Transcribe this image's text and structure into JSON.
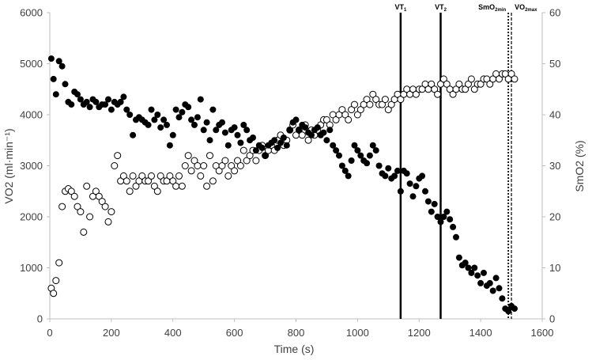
{
  "chart_data": {
    "type": "scatter",
    "xlabel": "Time (s)",
    "ylabel_left": "VO2 (ml·min⁻¹)",
    "ylabel_right": "SmO2 (%)",
    "xlim": [
      0,
      1600
    ],
    "ylim_left": [
      0,
      6000
    ],
    "ylim_right": [
      0,
      60
    ],
    "x_ticks": [
      "0",
      "200",
      "400",
      "600",
      "800",
      "1000",
      "1200",
      "1400",
      "1600"
    ],
    "y_left_ticks": [
      "0",
      "1000",
      "2000",
      "3000",
      "4000",
      "5000",
      "6000"
    ],
    "y_right_ticks": [
      "0",
      "10",
      "20",
      "30",
      "40",
      "50",
      "60"
    ],
    "grid": false,
    "colors": {
      "axis": "#bfbfbf",
      "text": "#404040",
      "filled": "#000000",
      "open_fill": "#ffffff",
      "open_stroke": "#000000"
    },
    "markers": [
      {
        "x": 1140,
        "style": "solid",
        "label": "VT",
        "sub": "1"
      },
      {
        "x": 1270,
        "style": "solid",
        "label": "VT",
        "sub": "2"
      },
      {
        "x": 1490,
        "style": "dotted",
        "label": "SmO",
        "sub": "2min"
      },
      {
        "x": 1500,
        "style": "dashed",
        "label": "VO",
        "sub": "2max"
      }
    ],
    "series": [
      {
        "axis": "left",
        "marker": "filled-circle",
        "x": [
          5,
          12,
          20,
          30,
          40,
          50,
          60,
          70,
          80,
          90,
          100,
          110,
          120,
          130,
          140,
          150,
          160,
          170,
          180,
          190,
          200,
          210,
          220,
          230,
          240,
          250,
          260,
          270,
          280,
          290,
          300,
          310,
          320,
          330,
          340,
          350,
          360,
          370,
          380,
          390,
          400,
          410,
          420,
          430,
          440,
          450,
          460,
          470,
          480,
          490,
          500,
          510,
          520,
          530,
          540,
          550,
          560,
          570,
          580,
          590,
          600,
          610,
          620,
          630,
          640,
          650,
          660,
          670,
          680,
          690,
          700,
          710,
          720,
          730,
          740,
          750,
          760,
          770,
          780,
          790,
          800,
          810,
          820,
          830,
          840,
          850,
          860,
          870,
          880,
          890,
          900,
          910,
          920,
          930,
          940,
          950,
          960,
          970,
          980,
          990,
          1000,
          1010,
          1020,
          1030,
          1040,
          1050,
          1060,
          1070,
          1080,
          1090,
          1100,
          1110,
          1120,
          1130,
          1140,
          1150,
          1160,
          1170,
          1180,
          1190,
          1200,
          1210,
          1220,
          1230,
          1240,
          1250,
          1260,
          1270,
          1280,
          1290,
          1300,
          1310,
          1320,
          1330,
          1340,
          1350,
          1360,
          1370,
          1380,
          1390,
          1400,
          1410,
          1420,
          1430,
          1440,
          1450,
          1460,
          1470,
          1480,
          1490,
          1500,
          1510
        ],
        "y": [
          5100,
          4700,
          4400,
          5050,
          4950,
          4600,
          4250,
          4200,
          4450,
          4400,
          4300,
          4200,
          4250,
          4150,
          4300,
          4250,
          4150,
          4200,
          4200,
          4300,
          4100,
          4250,
          4200,
          4250,
          4350,
          4100,
          4000,
          3600,
          3900,
          3950,
          3900,
          3850,
          3800,
          4100,
          3900,
          4000,
          3750,
          3900,
          3800,
          3400,
          3600,
          4100,
          3950,
          4050,
          4200,
          4150,
          3900,
          3800,
          3950,
          4300,
          3700,
          3850,
          3500,
          4100,
          3700,
          3800,
          3850,
          3650,
          3400,
          3700,
          3750,
          3600,
          3450,
          3800,
          3700,
          3500,
          3550,
          3300,
          3400,
          3350,
          3200,
          3400,
          3450,
          3500,
          3350,
          3450,
          3550,
          3400,
          3700,
          3850,
          3900,
          3700,
          3800,
          3750,
          3650,
          3600,
          3700,
          3750,
          3600,
          3650,
          3500,
          3700,
          3400,
          3300,
          3200,
          3000,
          2900,
          2800,
          3100,
          3400,
          3300,
          3200,
          3100,
          3050,
          3200,
          3400,
          3300,
          3000,
          2850,
          2800,
          2950,
          2750,
          2800,
          2900,
          2500,
          2900,
          2850,
          2650,
          2400,
          2600,
          2750,
          2800,
          2500,
          2300,
          2100,
          2250,
          2000,
          1900,
          2000,
          2100,
          1950,
          1800,
          1600,
          1200,
          1050,
          1100,
          1000,
          900,
          1000,
          850,
          700,
          900,
          650,
          700,
          550,
          800,
          600,
          400,
          200,
          150,
          250,
          200
        ]
      },
      {
        "axis": "right",
        "marker": "open-circle",
        "x": [
          5,
          12,
          20,
          30,
          40,
          50,
          60,
          70,
          80,
          90,
          100,
          110,
          120,
          130,
          140,
          150,
          160,
          170,
          180,
          190,
          200,
          210,
          220,
          230,
          240,
          250,
          260,
          270,
          280,
          290,
          300,
          310,
          320,
          330,
          340,
          350,
          360,
          370,
          380,
          390,
          400,
          410,
          420,
          430,
          440,
          450,
          460,
          470,
          480,
          490,
          500,
          510,
          520,
          530,
          540,
          550,
          560,
          570,
          580,
          590,
          600,
          610,
          620,
          630,
          640,
          650,
          660,
          670,
          680,
          690,
          700,
          710,
          720,
          730,
          740,
          750,
          760,
          770,
          780,
          790,
          800,
          810,
          820,
          830,
          840,
          850,
          860,
          870,
          880,
          890,
          900,
          910,
          920,
          930,
          940,
          950,
          960,
          970,
          980,
          990,
          1000,
          1010,
          1020,
          1030,
          1040,
          1050,
          1060,
          1070,
          1080,
          1090,
          1100,
          1110,
          1120,
          1130,
          1140,
          1150,
          1160,
          1170,
          1180,
          1190,
          1200,
          1210,
          1220,
          1230,
          1240,
          1250,
          1260,
          1270,
          1280,
          1290,
          1300,
          1310,
          1320,
          1330,
          1340,
          1350,
          1360,
          1370,
          1380,
          1390,
          1400,
          1410,
          1420,
          1430,
          1440,
          1450,
          1460,
          1470,
          1480,
          1490,
          1500,
          1510
        ],
        "y": [
          6,
          5,
          7.5,
          11,
          22,
          25,
          25.5,
          25,
          24,
          22,
          21,
          17,
          26,
          20,
          24,
          25,
          24,
          23,
          22,
          19,
          21,
          30,
          32,
          27,
          28,
          27,
          25,
          28,
          26,
          27,
          28,
          27,
          27,
          28,
          26,
          25,
          28,
          27,
          27,
          28,
          27,
          26,
          28,
          26,
          30,
          32,
          29,
          31,
          30,
          28,
          30,
          26,
          32,
          27,
          30,
          29,
          30,
          31,
          28,
          30,
          29,
          31,
          30,
          33,
          31,
          32,
          33,
          31,
          33,
          34,
          32,
          33,
          34,
          33,
          35,
          36,
          34,
          35,
          37,
          38,
          36,
          37,
          36,
          38,
          35,
          37,
          36,
          37,
          38,
          39,
          39,
          38,
          40,
          39,
          40,
          41,
          40,
          39,
          41,
          42,
          40,
          41,
          42,
          43,
          42,
          44,
          43,
          42,
          42,
          43,
          41,
          42,
          43,
          44,
          43,
          44,
          45,
          44,
          45,
          44,
          45,
          45,
          46,
          45,
          46,
          45,
          44,
          46,
          47,
          46,
          45,
          44,
          45,
          46,
          45,
          45,
          46,
          47,
          45,
          46,
          46,
          47,
          47,
          46,
          47,
          48,
          47,
          48,
          48,
          47,
          48,
          47
        ]
      }
    ]
  }
}
